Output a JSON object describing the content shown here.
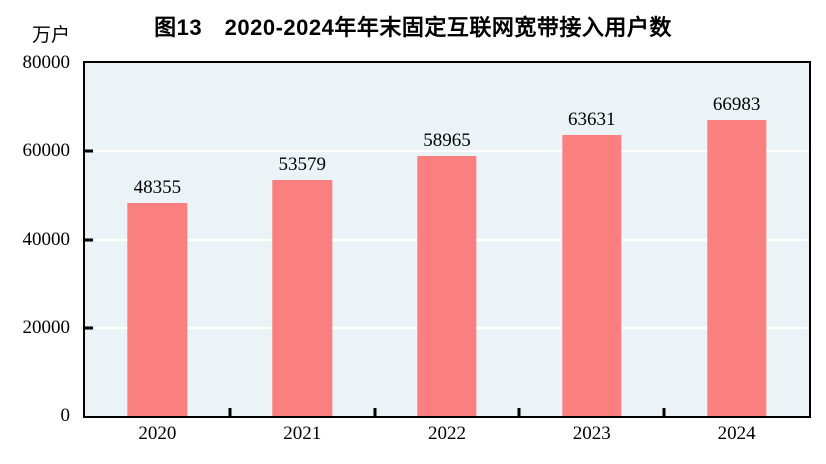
{
  "figure": {
    "title": "图13　2020-2024年年末固定互联网宽带接入用户数",
    "unit_label": "万户"
  },
  "chart_data": {
    "type": "bar",
    "title": "图13　2020-2024年年末固定互联网宽带接入用户数",
    "xlabel": "",
    "ylabel": "万户",
    "categories": [
      "2020",
      "2021",
      "2022",
      "2023",
      "2024"
    ],
    "values": [
      48355,
      53579,
      58965,
      63631,
      66983
    ],
    "bar_labels": [
      "48355",
      "53579",
      "58965",
      "63631",
      "66983"
    ],
    "ylim": [
      0,
      80000
    ],
    "yticks": [
      0,
      20000,
      40000,
      60000,
      80000
    ],
    "ytick_labels": [
      "0",
      "20000",
      "40000",
      "60000",
      "80000"
    ],
    "grid": "horizontal",
    "legend": "none",
    "tick_direction": "in",
    "colors": {
      "bar": "#fa8080",
      "plot_background": "#ecf3f7",
      "gridline": "#ffffff",
      "axis": "#000000",
      "text": "#000000"
    }
  }
}
